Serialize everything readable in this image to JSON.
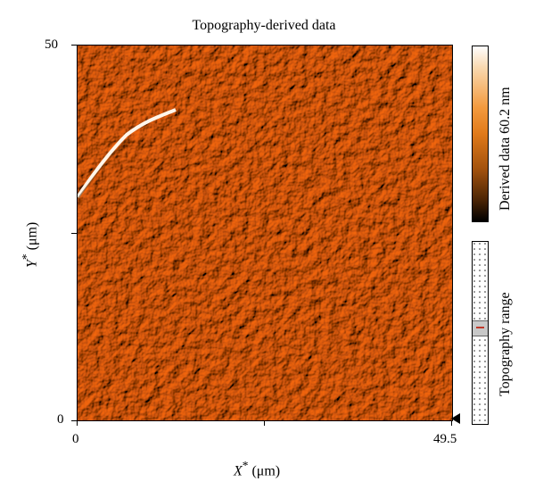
{
  "title": "Topography-derived data",
  "x_axis": {
    "label_var": "X",
    "label_sup": "*",
    "label_unit": " (μm)",
    "min_label": "0",
    "max_label": "49.5"
  },
  "y_axis": {
    "label_var": "Y",
    "label_sup": "*",
    "label_unit": " (μm)",
    "min_label": "0",
    "max_label": "50"
  },
  "colorbar": {
    "label": "Derived data 60.2 nm",
    "colors": [
      "#fefefe",
      "#f39a3e",
      "#000000"
    ]
  },
  "range_indicator": {
    "label": "Topography range"
  },
  "image_palette": {
    "base": "#e0862b",
    "highlight": "#fff1de",
    "shadow": "#6b3408"
  }
}
